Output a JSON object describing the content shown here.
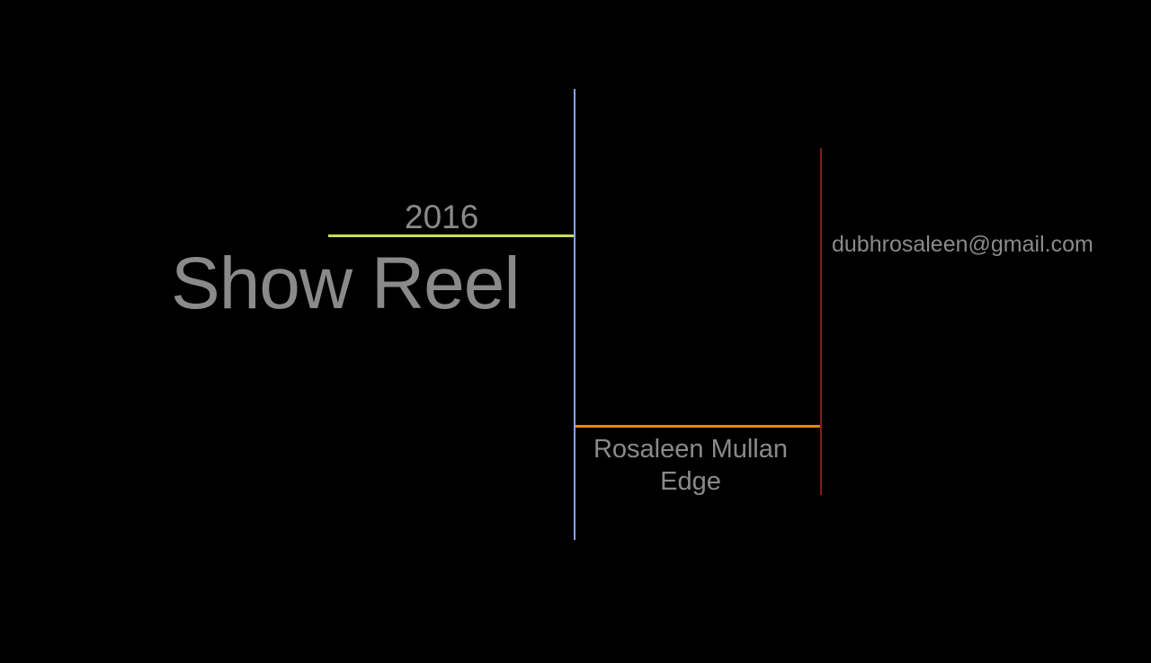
{
  "year": "2016",
  "title": "Show Reel",
  "email": "dubhrosaleen@gmail.com",
  "name": {
    "line1": "Rosaleen Mullan",
    "line2": "Edge"
  },
  "colors": {
    "background": "#000000",
    "text": "#8a8a8a",
    "yellow_line": "#c7e24a",
    "blue_line": "#8aa2ff",
    "orange_line": "#e08a12",
    "red_line": "#8b1a12"
  }
}
